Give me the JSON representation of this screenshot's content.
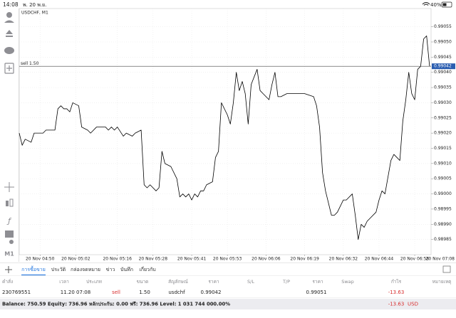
{
  "status_bar": {
    "time": "14:08",
    "date": "พ. 20 พ.ย.",
    "battery": "40%"
  },
  "toolbar": {
    "timeframe": "M1"
  },
  "chart_data": {
    "type": "line",
    "title": "USDCHF, M1",
    "x": [
      0,
      1,
      2,
      4,
      5,
      6,
      8,
      9,
      12,
      13,
      14,
      15,
      16,
      17,
      18,
      20,
      21,
      23,
      24,
      26,
      29,
      30,
      31,
      32,
      33,
      35,
      36,
      38,
      39,
      41,
      42,
      43,
      44,
      46,
      47,
      48,
      49,
      51,
      53,
      54,
      55,
      56,
      57,
      58,
      59,
      60,
      61,
      62,
      63,
      65,
      66,
      67,
      68,
      70,
      71,
      72,
      73,
      74,
      75,
      76,
      77,
      78,
      80,
      81,
      82,
      84,
      85,
      86,
      87,
      88,
      90,
      92,
      94,
      96,
      99,
      100,
      101,
      102,
      103,
      105,
      106,
      107,
      109,
      110,
      112,
      113,
      114,
      115,
      116,
      117,
      118,
      120,
      121,
      122,
      123,
      125,
      126,
      128,
      129,
      130,
      131,
      132,
      133,
      134,
      135,
      136,
      137,
      138
    ],
    "values": [
      0.9902,
      0.99016,
      0.99018,
      0.99017,
      0.9902,
      0.9902,
      0.9902,
      0.99021,
      0.99021,
      0.99028,
      0.99029,
      0.99028,
      0.99028,
      0.99027,
      0.9903,
      0.99029,
      0.99022,
      0.99021,
      0.9902,
      0.99022,
      0.99022,
      0.99021,
      0.99022,
      0.99021,
      0.99022,
      0.99019,
      0.9902,
      0.99019,
      0.9902,
      0.99021,
      0.99003,
      0.99002,
      0.99003,
      0.99001,
      0.99002,
      0.99014,
      0.9901,
      0.99009,
      0.99005,
      0.98999,
      0.99,
      0.98999,
      0.99,
      0.98998,
      0.99,
      0.98999,
      0.99001,
      0.99001,
      0.99003,
      0.99004,
      0.99012,
      0.99014,
      0.9903,
      0.99026,
      0.99023,
      0.9903,
      0.9904,
      0.99034,
      0.99037,
      0.99033,
      0.99023,
      0.99036,
      0.99041,
      0.99034,
      0.99033,
      0.99031,
      0.99036,
      0.9904,
      0.99032,
      0.99032,
      0.99033,
      0.99033,
      0.99033,
      0.99033,
      0.99032,
      0.99029,
      0.99022,
      0.99007,
      0.99001,
      0.98993,
      0.98993,
      0.98994,
      0.98998,
      0.98998,
      0.99,
      0.98993,
      0.98985,
      0.9899,
      0.98989,
      0.98991,
      0.98992,
      0.98994,
      0.98998,
      0.99001,
      0.99,
      0.99011,
      0.99013,
      0.99011,
      0.99024,
      0.99031,
      0.9904,
      0.99033,
      0.99031,
      0.99041,
      0.99042,
      0.99051,
      0.99052,
      0.99042
    ],
    "color": "#000000",
    "xlim": [
      0,
      138.5
    ],
    "xticks": [
      {
        "value": 7,
        "label": "20 Nov 04:50"
      },
      {
        "value": 19,
        "label": "20 Nov 05:02"
      },
      {
        "value": 33,
        "label": "20 Nov 05:16"
      },
      {
        "value": 45,
        "label": "20 Nov 05:28"
      },
      {
        "value": 58,
        "label": "20 Nov 05:41"
      },
      {
        "value": 70,
        "label": "20 Nov 05:53"
      },
      {
        "value": 83,
        "label": "20 Nov 06:06"
      },
      {
        "value": 96,
        "label": "20 Nov 06:19"
      },
      {
        "value": 109,
        "label": "20 Nov 06:32"
      },
      {
        "value": 121,
        "label": "20 Nov 06:44"
      },
      {
        "value": 133,
        "label": "20 Nov 06:56"
      },
      {
        "value": 145,
        "label": "20 Nov 07:08"
      }
    ],
    "ylim": [
      0.9898,
      0.99061
    ],
    "yticks": [
      0.99055,
      {
        "value": 0.9905,
        "label": "0.99050"
      },
      0.99045,
      {
        "value": 0.9904,
        "label": "0.99040"
      },
      0.99035,
      {
        "value": 0.9903,
        "label": "0.99030"
      },
      0.99025,
      {
        "value": 0.9902,
        "label": "0.99020"
      },
      0.99015,
      {
        "value": 0.9901,
        "label": "0.99010"
      },
      0.99005,
      {
        "value": 0.99,
        "label": "0.99000"
      },
      0.98995,
      {
        "value": 0.9899,
        "label": "0.98990"
      },
      0.98985
    ],
    "grid": true,
    "price_line": {
      "label": "sell 1.50",
      "value": 0.99042,
      "value_label": "0.99042",
      "color": "#2a5db0"
    }
  },
  "terminal": {
    "tabs": [
      "การซื้อขาย",
      "ประวัติ",
      "กล่องจดหมาย",
      "ข่าว",
      "บันทึก",
      "เกี่ยวกับ"
    ],
    "active_tab": 0,
    "header": [
      "คำสั่ง",
      "เวลา",
      "ประเภท",
      "ขนาด",
      "สัญลักษณ์",
      "ราคา",
      "S/L",
      "T/P",
      "ราคา",
      "Swap",
      "กำไร",
      "หมายเหตุ"
    ],
    "rows": [
      {
        "order": "230769551",
        "time": "11.20 07:08",
        "type": "sell",
        "size": "1.50",
        "symbol": "usdchf",
        "price": "0.99042",
        "current_price": "0.99051",
        "profit": "-13.63"
      }
    ],
    "balance": {
      "text": "Balance: 750.59 Equity: 736.96 หลักประกัน: 0.00 ฟรี: 736.96 Level: 1 031 744 000.00%",
      "profit": "-13.63",
      "currency": "USD"
    }
  }
}
